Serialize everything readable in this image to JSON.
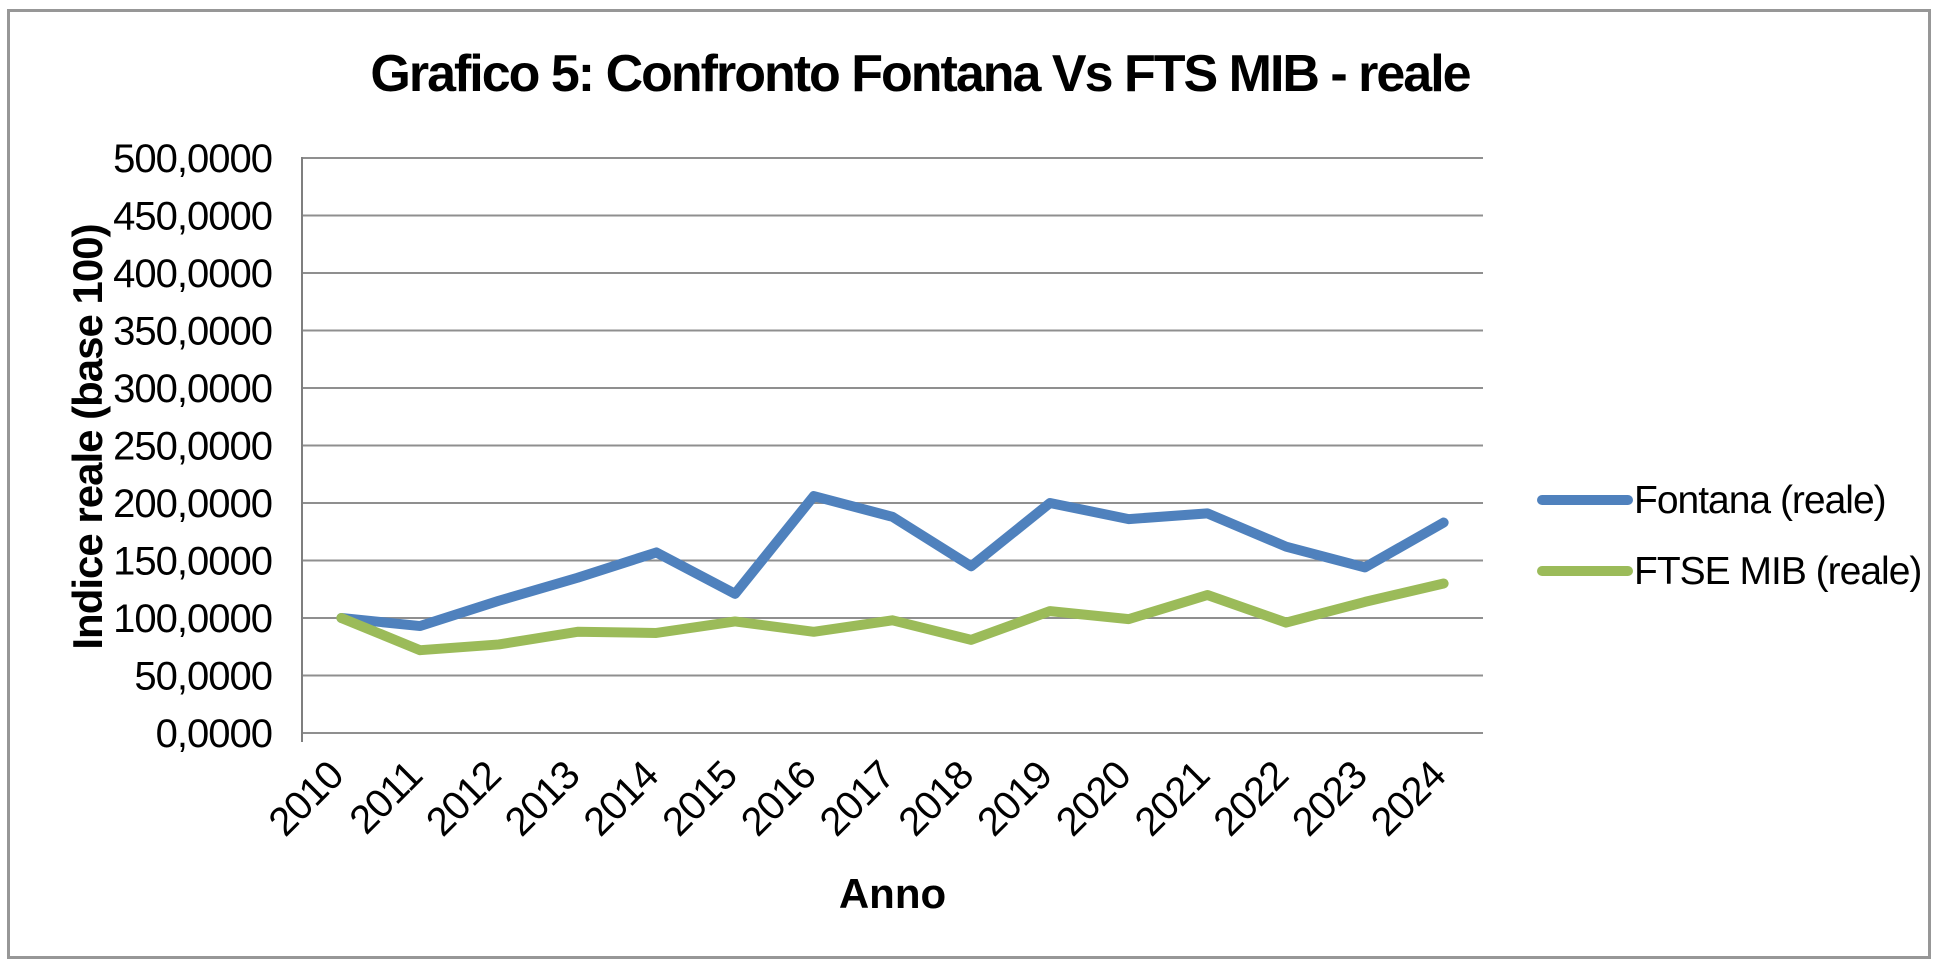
{
  "chart_data": {
    "type": "line",
    "title": "Grafico 5: Confronto Fontana Vs FTS MIB - reale",
    "xlabel": "Anno",
    "ylabel": "Indice reale (base 100)",
    "categories": [
      "2010",
      "2011",
      "2012",
      "2013",
      "2014",
      "2015",
      "2016",
      "2017",
      "2018",
      "2019",
      "2020",
      "2021",
      "2022",
      "2023",
      "2024"
    ],
    "series": [
      {
        "name": "Fontana (reale)",
        "color": "#4F81BD",
        "values": [
          100,
          93,
          115,
          135,
          157,
          121,
          206,
          188,
          145,
          200,
          186,
          191,
          162,
          144,
          183
        ]
      },
      {
        "name": "FTSE MIB (reale)",
        "color": "#9BBB59",
        "values": [
          100,
          72,
          77,
          88,
          87,
          97,
          88,
          98,
          81,
          106,
          99,
          120,
          96,
          114,
          130
        ]
      }
    ],
    "ylim": [
      0,
      500
    ],
    "y_tick_step": 50,
    "y_tick_labels": [
      "0,0000",
      "50,0000",
      "100,0000",
      "150,0000",
      "200,0000",
      "250,0000",
      "300,0000",
      "350,0000",
      "400,0000",
      "450,0000",
      "500,0000"
    ],
    "grid": true,
    "legend_position": "right",
    "colors": {
      "gridline": "#8f8f8f",
      "axis": "#7f7f7f",
      "frame_border": "#979797",
      "background": "#ffffff",
      "text": "#000000"
    }
  }
}
